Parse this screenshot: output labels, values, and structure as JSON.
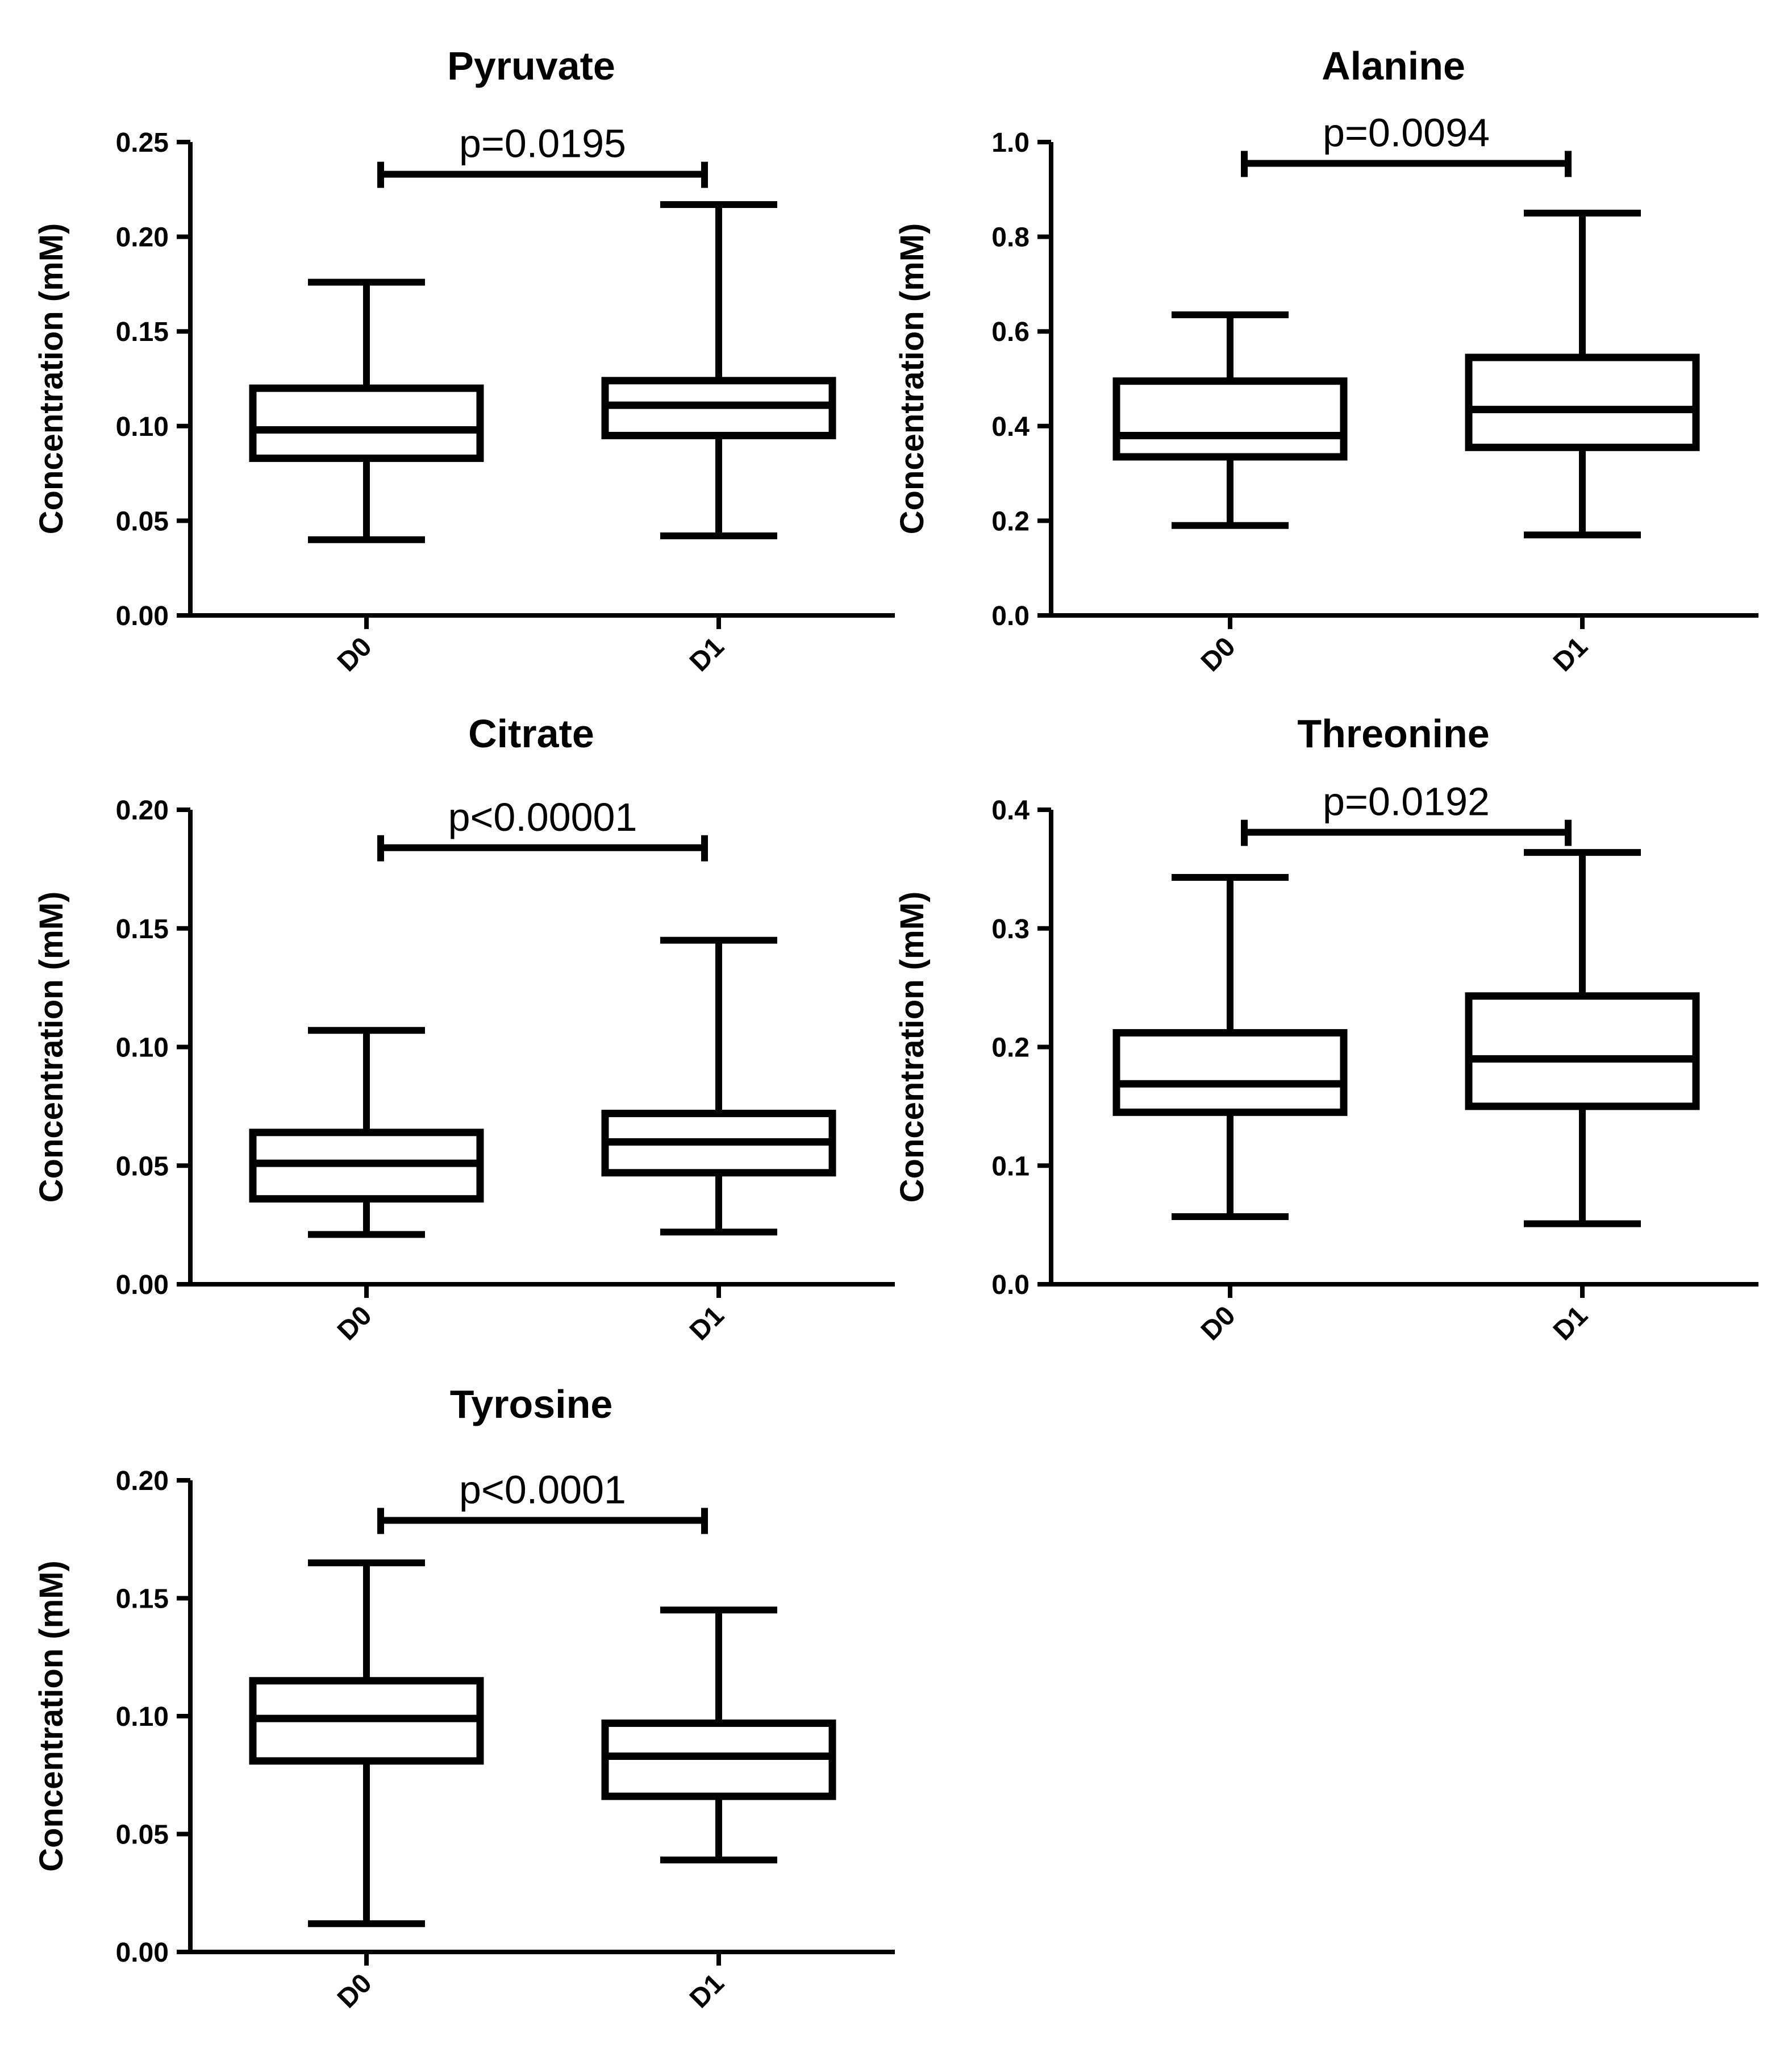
{
  "chart_data": [
    {
      "type": "box",
      "title": "Pyruvate",
      "ylabel": "Concentration (mM)",
      "categories": [
        "D0",
        "D1"
      ],
      "ylim": [
        0,
        0.25
      ],
      "yticks": [
        "0.00",
        "0.05",
        "0.10",
        "0.15",
        "0.20",
        "0.25"
      ],
      "boxes": [
        {
          "min": 0.04,
          "q1": 0.083,
          "median": 0.098,
          "q3": 0.12,
          "max": 0.176
        },
        {
          "min": 0.042,
          "q1": 0.095,
          "median": 0.111,
          "q3": 0.124,
          "max": 0.217
        }
      ],
      "significance": {
        "label": "p=0.0195",
        "y": 0.233
      }
    },
    {
      "type": "box",
      "title": "Alanine",
      "ylabel": "Concentration (mM)",
      "categories": [
        "D0",
        "D1"
      ],
      "ylim": [
        0,
        1.0
      ],
      "yticks": [
        "0.0",
        "0.2",
        "0.4",
        "0.6",
        "0.8",
        "1.0"
      ],
      "boxes": [
        {
          "min": 0.19,
          "q1": 0.335,
          "median": 0.38,
          "q3": 0.495,
          "max": 0.635
        },
        {
          "min": 0.17,
          "q1": 0.355,
          "median": 0.435,
          "q3": 0.545,
          "max": 0.85
        }
      ],
      "significance": {
        "label": "p=0.0094",
        "y": 0.955
      }
    },
    {
      "type": "box",
      "title": "Citrate",
      "ylabel": "Concentration (mM)",
      "categories": [
        "D0",
        "D1"
      ],
      "ylim": [
        0,
        0.2
      ],
      "yticks": [
        "0.00",
        "0.05",
        "0.10",
        "0.15",
        "0.20"
      ],
      "boxes": [
        {
          "min": 0.021,
          "q1": 0.036,
          "median": 0.051,
          "q3": 0.064,
          "max": 0.107
        },
        {
          "min": 0.022,
          "q1": 0.047,
          "median": 0.06,
          "q3": 0.072,
          "max": 0.145
        }
      ],
      "significance": {
        "label": "p<0.00001",
        "y": 0.184
      }
    },
    {
      "type": "box",
      "title": "Threonine",
      "ylabel": "Concentration (mM)",
      "categories": [
        "D0",
        "D1"
      ],
      "ylim": [
        0,
        0.4
      ],
      "yticks": [
        "0.0",
        "0.1",
        "0.2",
        "0.3",
        "0.4"
      ],
      "boxes": [
        {
          "min": 0.057,
          "q1": 0.145,
          "median": 0.169,
          "q3": 0.212,
          "max": 0.343
        },
        {
          "min": 0.051,
          "q1": 0.15,
          "median": 0.19,
          "q3": 0.243,
          "max": 0.364
        }
      ],
      "significance": {
        "label": "p=0.0192",
        "y": 0.381
      }
    },
    {
      "type": "box",
      "title": "Tyrosine",
      "ylabel": "Concentration (mM)",
      "categories": [
        "D0",
        "D1"
      ],
      "ylim": [
        0,
        0.2
      ],
      "yticks": [
        "0.00",
        "0.05",
        "0.10",
        "0.15",
        "0.20"
      ],
      "boxes": [
        {
          "min": 0.012,
          "q1": 0.081,
          "median": 0.099,
          "q3": 0.115,
          "max": 0.165
        },
        {
          "min": 0.039,
          "q1": 0.066,
          "median": 0.083,
          "q3": 0.097,
          "max": 0.145
        }
      ],
      "significance": {
        "label": "p<0.0001",
        "y": 0.183
      }
    }
  ]
}
